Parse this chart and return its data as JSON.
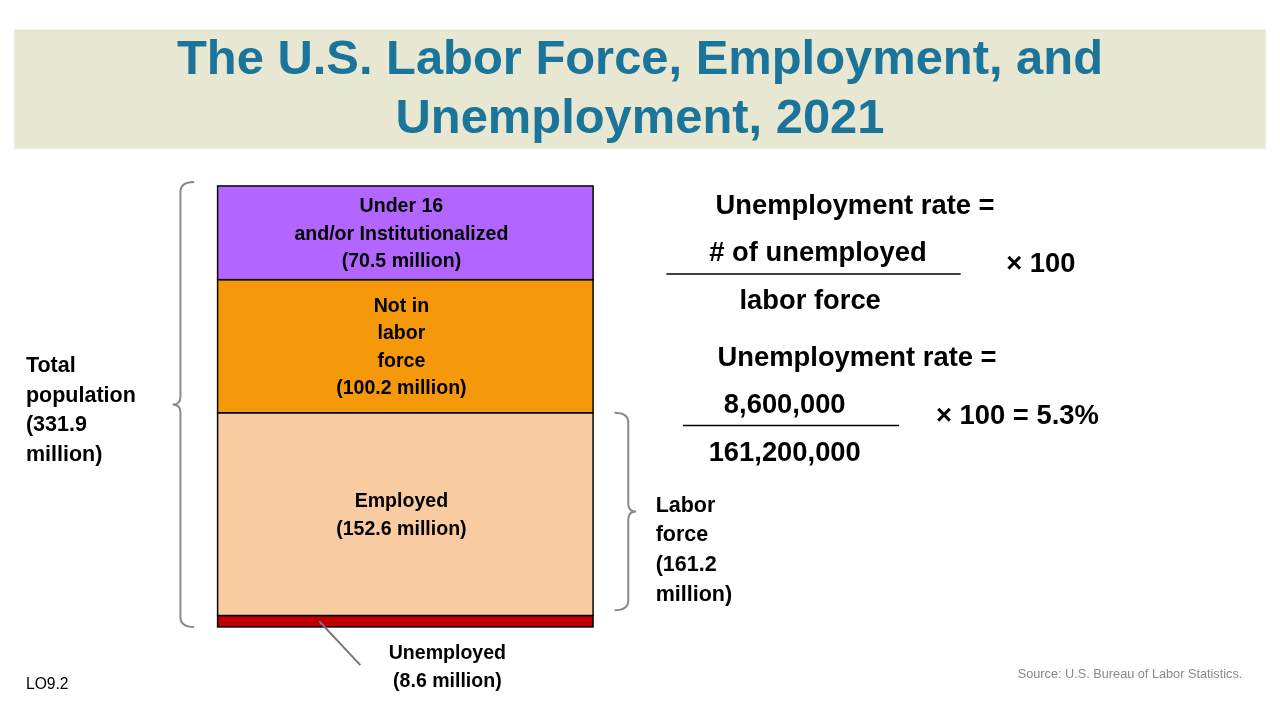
{
  "chart_data": {
    "type": "bar",
    "stacked": true,
    "title": "The U.S. Labor Force, Employment, and Unemployment, 2021",
    "categories": [
      null
    ],
    "series": [
      {
        "name": "Unemployed",
        "color": "#c00000",
        "values": [
          8.6
        ],
        "value_labels": [
          "(8.6 million)"
        ]
      },
      {
        "name": "Employed",
        "color": "#f8cba0",
        "values": [
          152.6
        ],
        "value_labels": [
          "(152.6 million)"
        ]
      },
      {
        "name": "Not in\nlabor\nforce",
        "color": "#f5990a",
        "values": [
          100.2
        ],
        "value_labels": [
          "(100.2 million)"
        ]
      },
      {
        "name": "Under 16\nand/or Institutionalized",
        "color": "#b266ff",
        "values": [
          70.5
        ],
        "value_labels": [
          "(70.5 million)"
        ]
      }
    ],
    "annotations": [
      "Total population (331.9 million)",
      "Labor force (161.2 million)",
      "Unemployment rate =",
      "# of unemployed",
      "labor force",
      "× 100",
      "Unemployment rate =",
      "8,600,000",
      "161,200,000",
      "× 100 = 5.3%",
      "Source: U.S. Bureau of Labor Statistics.",
      "LO9.2"
    ]
  }
}
